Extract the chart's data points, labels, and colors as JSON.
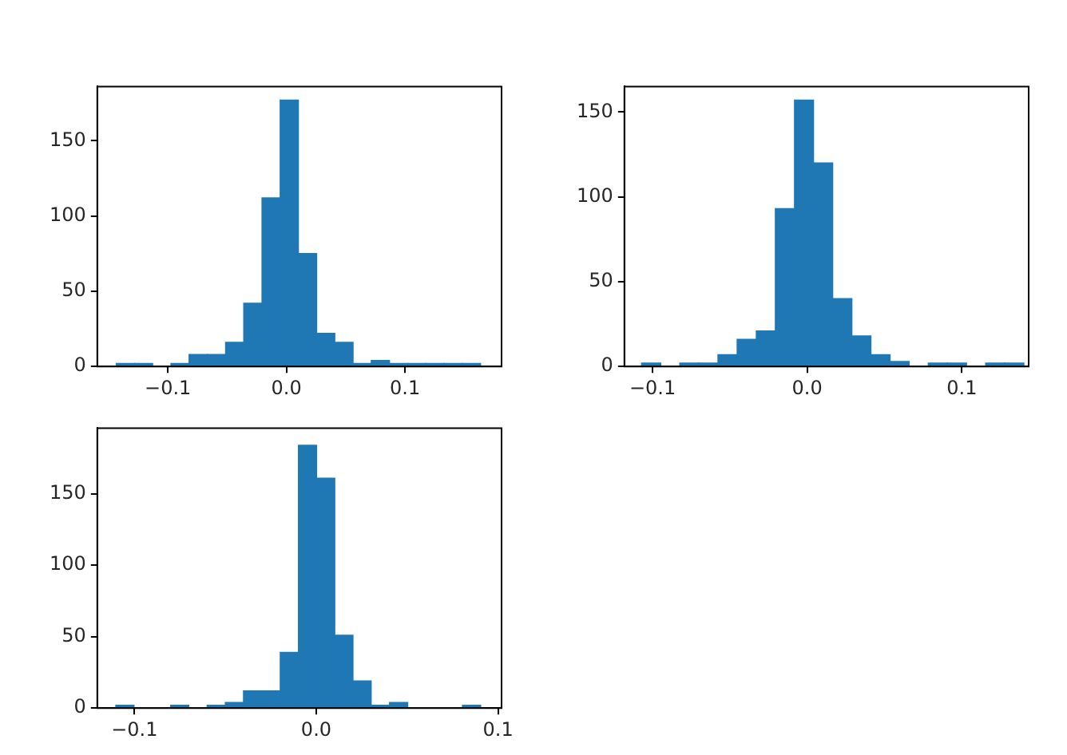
{
  "chart_data": [
    {
      "type": "histogram",
      "color": "#1f77b4",
      "grid": false,
      "bins": [
        -0.1435,
        -0.1281,
        -0.1128,
        -0.0974,
        -0.0821,
        -0.0667,
        -0.0513,
        -0.036,
        -0.0206,
        -0.0053,
        0.0101,
        0.0255,
        0.0408,
        0.0562,
        0.0715,
        0.0869,
        0.1023,
        0.1176,
        0.133,
        0.1483,
        0.1637
      ],
      "values": [
        2,
        2,
        0,
        2,
        8,
        8,
        16,
        42,
        112,
        177,
        75,
        22,
        16,
        2,
        4,
        2,
        2,
        2,
        2,
        2
      ],
      "xlim": [
        -0.1595,
        0.1814
      ],
      "xticks": [
        {
          "value": -0.1,
          "label": "−0.1"
        },
        {
          "value": 0,
          "label": "0.0"
        },
        {
          "value": 0.1,
          "label": "0.1"
        }
      ],
      "ylim": [
        0,
        186
      ],
      "yticks": [
        0,
        50,
        100,
        150
      ]
    },
    {
      "type": "histogram",
      "color": "#1f77b4",
      "grid": false,
      "bins": [
        -0.1071,
        -0.0947,
        -0.0824,
        -0.07,
        -0.0577,
        -0.0453,
        -0.0329,
        -0.0206,
        -0.0082,
        0.0041,
        0.0165,
        0.0289,
        0.0412,
        0.0536,
        0.0659,
        0.0783,
        0.0907,
        0.103,
        0.1154,
        0.1277,
        0.1401
      ],
      "values": [
        2,
        0,
        2,
        2,
        7,
        16,
        21,
        93,
        157,
        120,
        40,
        18,
        7,
        3,
        0,
        2,
        2,
        0,
        2,
        2
      ],
      "xlim": [
        -0.1182,
        0.1432
      ],
      "xticks": [
        {
          "value": -0.1,
          "label": "−0.1"
        },
        {
          "value": 0,
          "label": "0.0"
        },
        {
          "value": 0.1,
          "label": "0.1"
        }
      ],
      "ylim": [
        0,
        165
      ],
      "yticks": [
        0,
        50,
        100,
        150
      ]
    },
    {
      "type": "histogram",
      "color": "#1f77b4",
      "grid": false,
      "bins": [
        -0.1102,
        -0.1002,
        -0.0901,
        -0.0801,
        -0.0701,
        -0.06,
        -0.05,
        -0.04,
        -0.0298,
        -0.0198,
        -0.0098,
        0.0002,
        0.0102,
        0.0202,
        0.0302,
        0.0403,
        0.0503,
        0.0603,
        0.0704,
        0.0804,
        0.0904
      ],
      "values": [
        2,
        0,
        0,
        2,
        0,
        2,
        4,
        12,
        12,
        39,
        184,
        161,
        51,
        19,
        2,
        4,
        0,
        0,
        0,
        2
      ],
      "xlim": [
        -0.1204,
        0.1019
      ],
      "xticks": [
        {
          "value": -0.1,
          "label": "−0.1"
        },
        {
          "value": 0,
          "label": "0.0"
        },
        {
          "value": 0.1,
          "label": "0.1"
        }
      ],
      "ylim": [
        0,
        196
      ],
      "yticks": [
        0,
        50,
        100,
        150
      ]
    }
  ]
}
